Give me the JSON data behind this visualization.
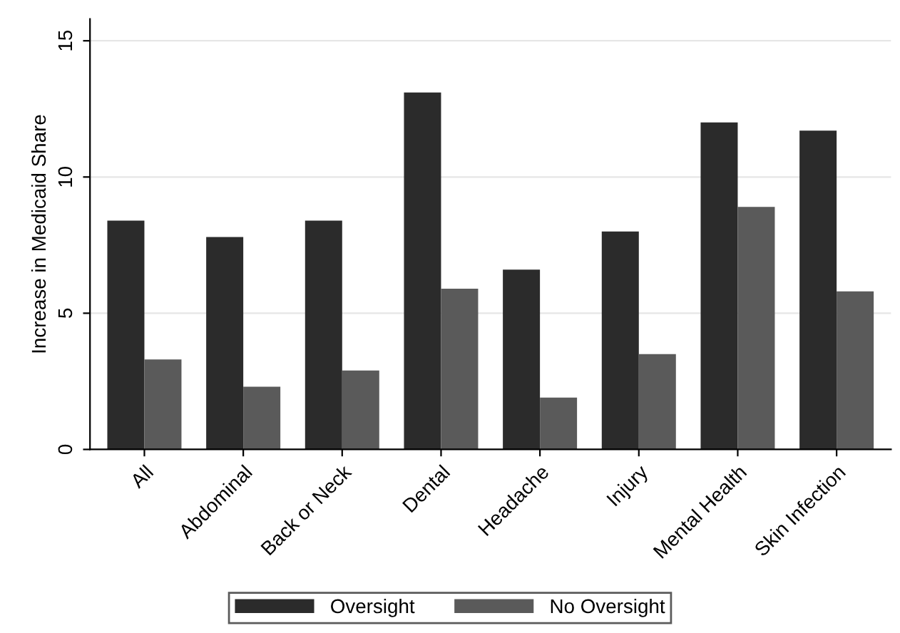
{
  "chart_data": {
    "type": "bar",
    "ylabel": "Increase in Medicaid Share",
    "categories": [
      "All",
      "Abdominal",
      "Back or Neck",
      "Dental",
      "Headache",
      "Injury",
      "Mental Health",
      "Skin Infection"
    ],
    "series": [
      {
        "name": "Oversight",
        "color": "#2b2b2b",
        "values": [
          8.4,
          7.8,
          8.4,
          13.1,
          6.6,
          8.0,
          12.0,
          11.7
        ]
      },
      {
        "name": "No Oversight",
        "color": "#5a5a5a",
        "values": [
          3.3,
          2.3,
          2.9,
          5.9,
          1.9,
          3.5,
          8.9,
          5.8
        ]
      }
    ],
    "ylim": [
      0,
      15.8
    ],
    "yticks": [
      0,
      5,
      10,
      15
    ],
    "grid": "y",
    "legend": "bottom"
  }
}
